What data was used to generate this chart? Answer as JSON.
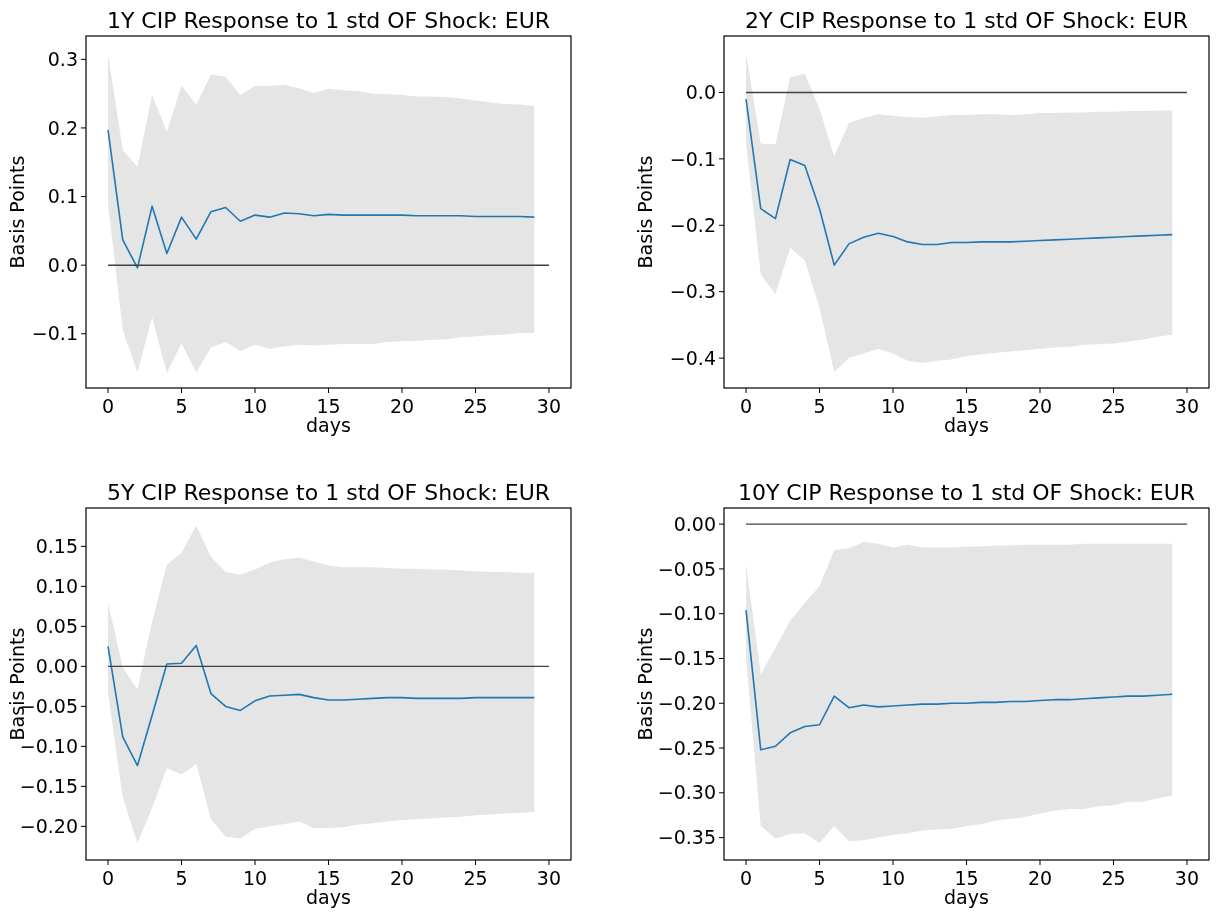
{
  "chart_data": [
    {
      "type": "line",
      "title": "1Y CIP Response to 1 std OF Shock: EUR",
      "xlabel": "days",
      "ylabel": "Basis Points",
      "x": [
        0,
        1,
        2,
        3,
        4,
        5,
        6,
        7,
        8,
        9,
        10,
        11,
        12,
        13,
        14,
        15,
        16,
        17,
        18,
        19,
        20,
        21,
        22,
        23,
        24,
        25,
        26,
        27,
        28,
        29
      ],
      "xlim": [
        -1.5,
        31.5
      ],
      "xticks": [
        0,
        5,
        10,
        15,
        20,
        25,
        30
      ],
      "ylim": [
        -0.179,
        0.334
      ],
      "yticks": [
        {
          "value": -0.1,
          "label": "−0.1"
        },
        {
          "value": 0,
          "label": "0.0"
        },
        {
          "value": 0.1,
          "label": "0.1"
        },
        {
          "value": 0.2,
          "label": "0.2"
        },
        {
          "value": 0.3,
          "label": "0.3"
        }
      ],
      "series": [
        {
          "color": "#1f77b4",
          "values": [
            0.197,
            0.037,
            -0.004,
            0.086,
            0.017,
            0.07,
            0.038,
            0.078,
            0.084,
            0.064,
            0.073,
            0.07,
            0.076,
            0.075,
            0.072,
            0.074,
            0.073,
            0.073,
            0.073,
            0.073,
            0.073,
            0.072,
            0.072,
            0.072,
            0.072,
            0.071,
            0.071,
            0.071,
            0.071,
            0.07
          ],
          "upper": [
            0.308,
            0.168,
            0.143,
            0.248,
            0.195,
            0.262,
            0.234,
            0.278,
            0.275,
            0.248,
            0.261,
            0.261,
            0.263,
            0.258,
            0.251,
            0.257,
            0.255,
            0.254,
            0.25,
            0.249,
            0.248,
            0.246,
            0.246,
            0.245,
            0.243,
            0.24,
            0.237,
            0.235,
            0.234,
            0.232
          ],
          "lower": [
            0.089,
            -0.094,
            -0.156,
            -0.076,
            -0.157,
            -0.114,
            -0.156,
            -0.12,
            -0.112,
            -0.125,
            -0.116,
            -0.122,
            -0.118,
            -0.116,
            -0.117,
            -0.116,
            -0.115,
            -0.115,
            -0.115,
            -0.112,
            -0.111,
            -0.11,
            -0.109,
            -0.108,
            -0.105,
            -0.104,
            -0.102,
            -0.101,
            -0.099,
            -0.099
          ]
        }
      ],
      "ref_lines": [
        {
          "axis": "y",
          "value": 0,
          "color": "#404040"
        }
      ]
    },
    {
      "type": "line",
      "title": "2Y CIP Response to 1 std OF Shock: EUR",
      "xlabel": "days",
      "ylabel": "Basis Points",
      "x": [
        0,
        1,
        2,
        3,
        4,
        5,
        6,
        7,
        8,
        9,
        10,
        11,
        12,
        13,
        14,
        15,
        16,
        17,
        18,
        19,
        20,
        21,
        22,
        23,
        24,
        25,
        26,
        27,
        28,
        29
      ],
      "xlim": [
        -1.5,
        31.5
      ],
      "xticks": [
        0,
        5,
        10,
        15,
        20,
        25,
        30
      ],
      "ylim": [
        -0.445,
        0.085
      ],
      "yticks": [
        {
          "value": -0.4,
          "label": "−0.4"
        },
        {
          "value": -0.3,
          "label": "−0.3"
        },
        {
          "value": -0.2,
          "label": "−0.2"
        },
        {
          "value": -0.1,
          "label": "−0.1"
        },
        {
          "value": 0,
          "label": "0.0"
        }
      ],
      "series": [
        {
          "color": "#1f77b4",
          "values": [
            -0.01,
            -0.175,
            -0.19,
            -0.101,
            -0.11,
            -0.175,
            -0.26,
            -0.228,
            -0.218,
            -0.212,
            -0.217,
            -0.225,
            -0.229,
            -0.229,
            -0.226,
            -0.226,
            -0.225,
            -0.225,
            -0.225,
            -0.224,
            -0.223,
            -0.222,
            -0.221,
            -0.22,
            -0.219,
            -0.218,
            -0.217,
            -0.216,
            -0.215,
            -0.214
          ],
          "upper": [
            0.059,
            -0.077,
            -0.078,
            0.023,
            0.028,
            -0.025,
            -0.096,
            -0.046,
            -0.038,
            -0.033,
            -0.035,
            -0.037,
            -0.038,
            -0.036,
            -0.034,
            -0.034,
            -0.033,
            -0.033,
            -0.034,
            -0.033,
            -0.031,
            -0.031,
            -0.03,
            -0.03,
            -0.029,
            -0.029,
            -0.028,
            -0.028,
            -0.027,
            -0.027
          ],
          "lower": [
            -0.077,
            -0.274,
            -0.304,
            -0.234,
            -0.253,
            -0.324,
            -0.421,
            -0.4,
            -0.393,
            -0.386,
            -0.393,
            -0.404,
            -0.407,
            -0.404,
            -0.402,
            -0.397,
            -0.394,
            -0.392,
            -0.39,
            -0.388,
            -0.386,
            -0.384,
            -0.383,
            -0.38,
            -0.379,
            -0.378,
            -0.375,
            -0.372,
            -0.368,
            -0.365
          ]
        }
      ],
      "ref_lines": [
        {
          "axis": "y",
          "value": 0,
          "color": "#404040"
        }
      ]
    },
    {
      "type": "line",
      "title": "5Y CIP Response to 1 std OF Shock: EUR",
      "xlabel": "days",
      "ylabel": "Basis Points",
      "x": [
        0,
        1,
        2,
        3,
        4,
        5,
        6,
        7,
        8,
        9,
        10,
        11,
        12,
        13,
        14,
        15,
        16,
        17,
        18,
        19,
        20,
        21,
        22,
        23,
        24,
        25,
        26,
        27,
        28,
        29
      ],
      "xlim": [
        -1.5,
        31.5
      ],
      "xticks": [
        0,
        5,
        10,
        15,
        20,
        25,
        30
      ],
      "ylim": [
        -0.242,
        0.198
      ],
      "yticks": [
        {
          "value": -0.2,
          "label": "−0.20"
        },
        {
          "value": -0.15,
          "label": "−0.15"
        },
        {
          "value": -0.1,
          "label": "−0.10"
        },
        {
          "value": -0.05,
          "label": "−0.05"
        },
        {
          "value": 0,
          "label": "0.00"
        },
        {
          "value": 0.05,
          "label": "0.05"
        },
        {
          "value": 0.1,
          "label": "0.10"
        },
        {
          "value": 0.15,
          "label": "0.15"
        }
      ],
      "series": [
        {
          "color": "#1f77b4",
          "values": [
            0.025,
            -0.088,
            -0.124,
            -0.061,
            0.003,
            0.004,
            0.026,
            -0.034,
            -0.05,
            -0.055,
            -0.043,
            -0.037,
            -0.036,
            -0.035,
            -0.039,
            -0.042,
            -0.042,
            -0.041,
            -0.04,
            -0.039,
            -0.039,
            -0.04,
            -0.04,
            -0.04,
            -0.04,
            -0.039,
            -0.039,
            -0.039,
            -0.039,
            -0.039
          ],
          "upper": [
            0.08,
            -0.001,
            -0.029,
            0.056,
            0.127,
            0.142,
            0.176,
            0.137,
            0.118,
            0.115,
            0.121,
            0.13,
            0.134,
            0.136,
            0.131,
            0.126,
            0.124,
            0.124,
            0.124,
            0.123,
            0.122,
            0.122,
            0.121,
            0.121,
            0.12,
            0.119,
            0.118,
            0.118,
            0.117,
            0.117
          ],
          "lower": [
            -0.033,
            -0.164,
            -0.221,
            -0.177,
            -0.127,
            -0.135,
            -0.122,
            -0.191,
            -0.213,
            -0.215,
            -0.203,
            -0.2,
            -0.197,
            -0.194,
            -0.202,
            -0.202,
            -0.201,
            -0.198,
            -0.196,
            -0.194,
            -0.192,
            -0.191,
            -0.19,
            -0.189,
            -0.188,
            -0.186,
            -0.185,
            -0.184,
            -0.183,
            -0.182
          ]
        }
      ],
      "ref_lines": [
        {
          "axis": "y",
          "value": 0,
          "color": "#404040"
        }
      ]
    },
    {
      "type": "line",
      "title": "10Y CIP Response to 1 std OF Shock: EUR",
      "xlabel": "days",
      "ylabel": "Basis Points",
      "x": [
        0,
        1,
        2,
        3,
        4,
        5,
        6,
        7,
        8,
        9,
        10,
        11,
        12,
        13,
        14,
        15,
        16,
        17,
        18,
        19,
        20,
        21,
        22,
        23,
        24,
        25,
        26,
        27,
        28,
        29
      ],
      "xlim": [
        -1.5,
        31.5
      ],
      "xticks": [
        0,
        5,
        10,
        15,
        20,
        25,
        30
      ],
      "ylim": [
        -0.375,
        0.018
      ],
      "yticks": [
        {
          "value": -0.35,
          "label": "−0.35"
        },
        {
          "value": -0.3,
          "label": "−0.30"
        },
        {
          "value": -0.25,
          "label": "−0.25"
        },
        {
          "value": -0.2,
          "label": "−0.20"
        },
        {
          "value": -0.15,
          "label": "−0.15"
        },
        {
          "value": -0.1,
          "label": "−0.10"
        },
        {
          "value": -0.05,
          "label": "−0.05"
        },
        {
          "value": 0,
          "label": "0.00"
        }
      ],
      "series": [
        {
          "color": "#1f77b4",
          "values": [
            -0.096,
            -0.252,
            -0.248,
            -0.233,
            -0.226,
            -0.224,
            -0.192,
            -0.205,
            -0.202,
            -0.204,
            -0.203,
            -0.202,
            -0.201,
            -0.201,
            -0.2,
            -0.2,
            -0.199,
            -0.199,
            -0.198,
            -0.198,
            -0.197,
            -0.196,
            -0.196,
            -0.195,
            -0.194,
            -0.193,
            -0.192,
            -0.192,
            -0.191,
            -0.19
          ],
          "upper": [
            -0.044,
            -0.168,
            -0.138,
            -0.108,
            -0.088,
            -0.069,
            -0.029,
            -0.027,
            -0.02,
            -0.022,
            -0.026,
            -0.023,
            -0.026,
            -0.026,
            -0.026,
            -0.025,
            -0.025,
            -0.024,
            -0.024,
            -0.023,
            -0.023,
            -0.023,
            -0.023,
            -0.022,
            -0.022,
            -0.022,
            -0.022,
            -0.022,
            -0.022,
            -0.022
          ],
          "lower": [
            -0.15,
            -0.337,
            -0.351,
            -0.346,
            -0.345,
            -0.356,
            -0.337,
            -0.354,
            -0.353,
            -0.35,
            -0.347,
            -0.345,
            -0.342,
            -0.341,
            -0.34,
            -0.337,
            -0.335,
            -0.331,
            -0.329,
            -0.327,
            -0.323,
            -0.32,
            -0.318,
            -0.318,
            -0.315,
            -0.314,
            -0.31,
            -0.31,
            -0.306,
            -0.303
          ]
        }
      ],
      "ref_lines": [
        {
          "axis": "y",
          "value": 0,
          "color": "#404040"
        }
      ]
    }
  ]
}
